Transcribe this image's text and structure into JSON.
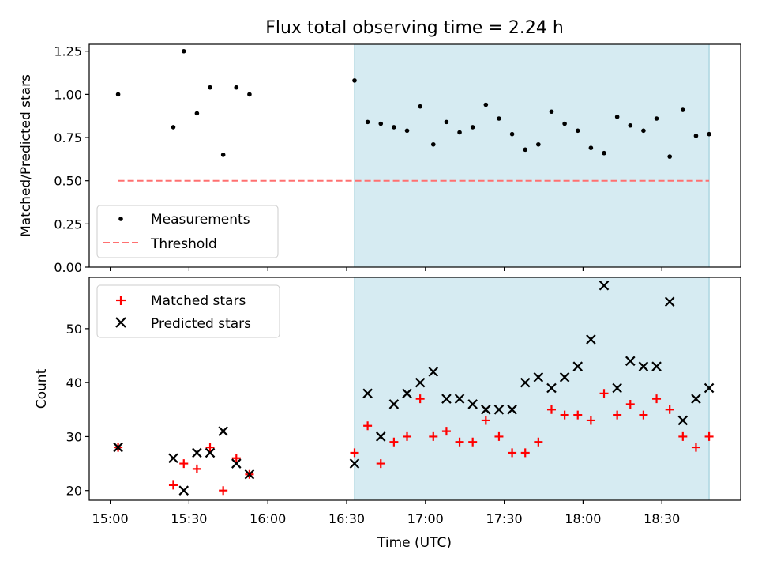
{
  "chart_data": [
    {
      "type": "scatter",
      "title": "Flux total observing time = 2.24 h",
      "xlabel": "",
      "ylabel": "Matched/Predicted stars",
      "ylim": [
        0,
        1.29
      ],
      "yticks": [
        "0.00",
        "0.25",
        "0.50",
        "0.75",
        "1.00",
        "1.25"
      ],
      "threshold": 0.5,
      "threshold_x": [
        "15:03",
        "18:48"
      ],
      "shaded_x": [
        "16:33",
        "18:48"
      ],
      "shade_color": "#add8e6",
      "legend": {
        "placement": "lower-left",
        "entries": [
          "Measurements",
          "Threshold"
        ]
      },
      "series": [
        {
          "name": "Measurements",
          "color": "#000000",
          "x": [
            "15:03",
            "15:24",
            "15:28",
            "15:33",
            "15:38",
            "15:43",
            "15:48",
            "15:53",
            "16:33",
            "16:38",
            "16:43",
            "16:48",
            "16:53",
            "16:58",
            "17:03",
            "17:08",
            "17:13",
            "17:18",
            "17:23",
            "17:28",
            "17:33",
            "17:38",
            "17:43",
            "17:48",
            "17:53",
            "17:58",
            "18:03",
            "18:08",
            "18:13",
            "18:18",
            "18:23",
            "18:28",
            "18:33",
            "18:38",
            "18:43",
            "18:48"
          ],
          "y": [
            1.0,
            0.81,
            1.25,
            0.89,
            1.04,
            0.65,
            1.04,
            1.0,
            1.08,
            0.84,
            0.83,
            0.81,
            0.79,
            0.93,
            0.71,
            0.84,
            0.78,
            0.81,
            0.94,
            0.86,
            0.77,
            0.68,
            0.71,
            0.9,
            0.83,
            0.79,
            0.69,
            0.66,
            0.87,
            0.82,
            0.79,
            0.86,
            0.64,
            0.91,
            0.76,
            0.77
          ]
        },
        {
          "name": "Threshold",
          "color": "#ff7070",
          "y": [
            0.5
          ]
        }
      ]
    },
    {
      "type": "scatter",
      "title": "",
      "xlabel": "Time (UTC)",
      "ylabel": "Count",
      "ylim": [
        18.2,
        59.5
      ],
      "yticks": [
        "20",
        "30",
        "40",
        "50"
      ],
      "xlim": [
        "14:52",
        "19:00"
      ],
      "xticks": [
        "15:00",
        "15:30",
        "16:00",
        "16:30",
        "17:00",
        "17:30",
        "18:00",
        "18:30"
      ],
      "shaded_x": [
        "16:33",
        "18:48"
      ],
      "legend": {
        "placement": "upper-left",
        "entries": [
          "Matched stars",
          "Predicted stars"
        ]
      },
      "series": [
        {
          "name": "Matched stars",
          "color": "#ff0000",
          "x": [
            "15:03",
            "15:24",
            "15:28",
            "15:33",
            "15:38",
            "15:43",
            "15:48",
            "15:53",
            "16:33",
            "16:38",
            "16:43",
            "16:48",
            "16:53",
            "16:58",
            "17:03",
            "17:08",
            "17:13",
            "17:18",
            "17:23",
            "17:28",
            "17:33",
            "17:38",
            "17:43",
            "17:48",
            "17:53",
            "17:58",
            "18:03",
            "18:08",
            "18:13",
            "18:18",
            "18:23",
            "18:28",
            "18:33",
            "18:38",
            "18:43",
            "18:48"
          ],
          "y": [
            28,
            21,
            25,
            24,
            28,
            20,
            26,
            23,
            27,
            32,
            25,
            29,
            30,
            37,
            30,
            31,
            29,
            29,
            33,
            30,
            27,
            27,
            29,
            35,
            34,
            34,
            33,
            38,
            34,
            36,
            34,
            37,
            35,
            30,
            28,
            30
          ]
        },
        {
          "name": "Predicted stars",
          "color": "#000000",
          "x": [
            "15:03",
            "15:24",
            "15:28",
            "15:33",
            "15:38",
            "15:43",
            "15:48",
            "15:53",
            "16:33",
            "16:38",
            "16:43",
            "16:48",
            "16:53",
            "16:58",
            "17:03",
            "17:08",
            "17:13",
            "17:18",
            "17:23",
            "17:28",
            "17:33",
            "17:38",
            "17:43",
            "17:48",
            "17:53",
            "17:58",
            "18:03",
            "18:08",
            "18:13",
            "18:18",
            "18:23",
            "18:28",
            "18:33",
            "18:38",
            "18:43",
            "18:48"
          ],
          "y": [
            28,
            26,
            20,
            27,
            27,
            31,
            25,
            23,
            25,
            38,
            30,
            36,
            38,
            40,
            42,
            37,
            37,
            36,
            35,
            35,
            35,
            40,
            41,
            39,
            41,
            43,
            48,
            58,
            39,
            44,
            43,
            43,
            55,
            33,
            37,
            39
          ]
        }
      ]
    }
  ]
}
